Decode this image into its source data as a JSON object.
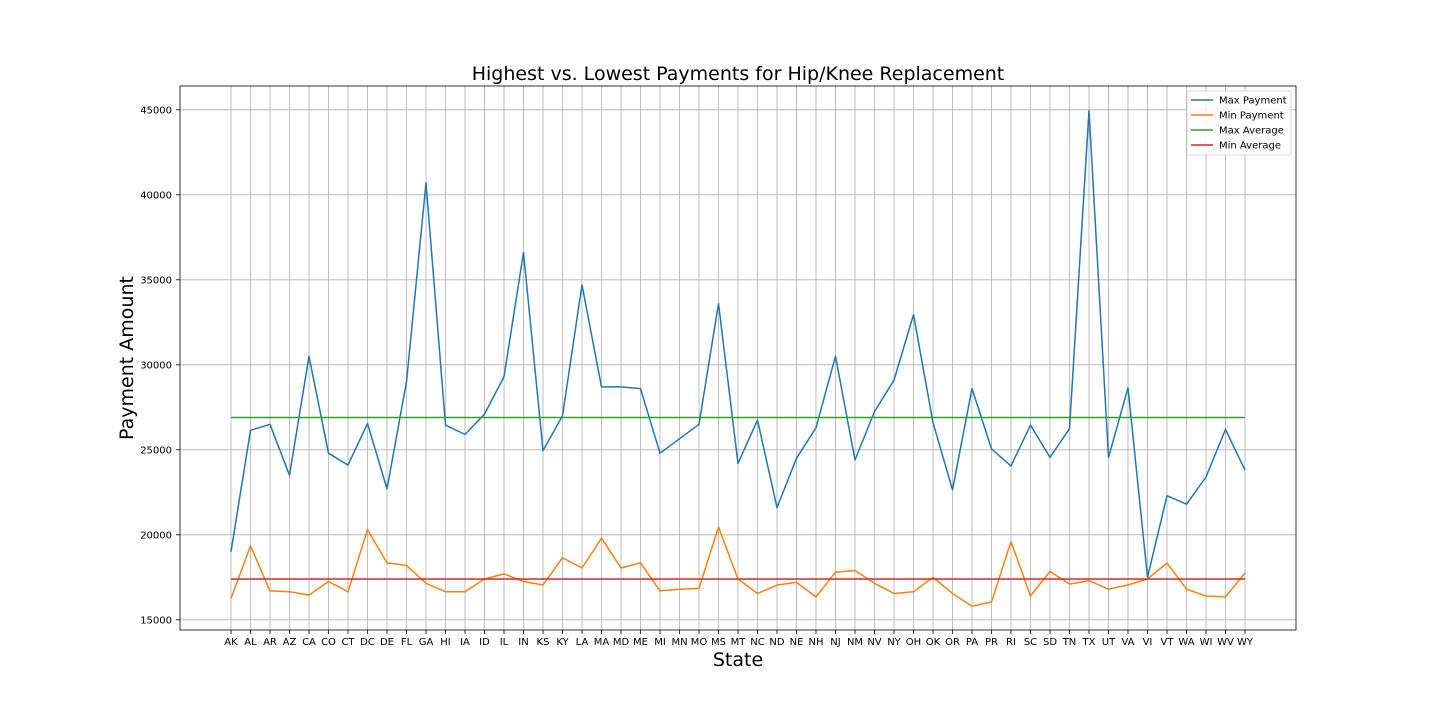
{
  "chart_data": {
    "type": "line",
    "title": "Highest vs. Lowest Payments for Hip/Knee Replacement",
    "xlabel": "State",
    "ylabel": "Payment Amount",
    "ylim": [
      14400,
      46400
    ],
    "yticks": [
      15000,
      20000,
      25000,
      30000,
      35000,
      40000,
      45000
    ],
    "grid": true,
    "legend_position": "top-right",
    "categories": [
      "AK",
      "AL",
      "AR",
      "AZ",
      "CA",
      "CO",
      "CT",
      "DC",
      "DE",
      "FL",
      "GA",
      "HI",
      "IA",
      "ID",
      "IL",
      "IN",
      "KS",
      "KY",
      "LA",
      "MA",
      "MD",
      "ME",
      "MI",
      "MN",
      "MO",
      "MS",
      "MT",
      "NC",
      "ND",
      "NE",
      "NH",
      "NJ",
      "NM",
      "NV",
      "NY",
      "OH",
      "OK",
      "OR",
      "PA",
      "PR",
      "RI",
      "SC",
      "SD",
      "TN",
      "TX",
      "UT",
      "VA",
      "VI",
      "VT",
      "WA",
      "WI",
      "WV",
      "WY"
    ],
    "series": [
      {
        "name": "Max Payment",
        "color": "#1f77b4",
        "values": [
          19000,
          26150,
          26500,
          23500,
          30500,
          24800,
          24100,
          26550,
          22700,
          29000,
          40700,
          26450,
          25900,
          27100,
          29300,
          36600,
          24950,
          27000,
          34700,
          28700,
          28700,
          28600,
          24800,
          25650,
          26500,
          33600,
          24200,
          26750,
          21600,
          24500,
          26300,
          30500,
          24400,
          27250,
          29100,
          32950,
          26600,
          22650,
          28600,
          25050,
          24050,
          26450,
          24550,
          26250,
          44950,
          24550,
          28650,
          17500,
          22300,
          21800,
          23400,
          26200,
          23800
        ]
      },
      {
        "name": "Min Payment",
        "color": "#ff7f0e",
        "values": [
          16250,
          19350,
          16700,
          16650,
          16450,
          17250,
          16650,
          20300,
          18350,
          18200,
          17150,
          16650,
          16650,
          17400,
          17700,
          17250,
          17050,
          18650,
          18050,
          19800,
          18050,
          18350,
          16700,
          16800,
          16850,
          20450,
          17400,
          16550,
          17050,
          17200,
          16350,
          17800,
          17900,
          17150,
          16550,
          16650,
          17500,
          16550,
          15800,
          16050,
          19600,
          16400,
          17850,
          17100,
          17300,
          16800,
          17050,
          17400,
          18350,
          16800,
          16400,
          16350,
          17750
        ]
      },
      {
        "name": "Max Average",
        "color": "#2ca02c",
        "values": [
          26900,
          26900,
          26900,
          26900,
          26900,
          26900,
          26900,
          26900,
          26900,
          26900,
          26900,
          26900,
          26900,
          26900,
          26900,
          26900,
          26900,
          26900,
          26900,
          26900,
          26900,
          26900,
          26900,
          26900,
          26900,
          26900,
          26900,
          26900,
          26900,
          26900,
          26900,
          26900,
          26900,
          26900,
          26900,
          26900,
          26900,
          26900,
          26900,
          26900,
          26900,
          26900,
          26900,
          26900,
          26900,
          26900,
          26900,
          26900,
          26900,
          26900,
          26900,
          26900,
          26900
        ]
      },
      {
        "name": "Min Average",
        "color": "#d62728",
        "values": [
          17400,
          17400,
          17400,
          17400,
          17400,
          17400,
          17400,
          17400,
          17400,
          17400,
          17400,
          17400,
          17400,
          17400,
          17400,
          17400,
          17400,
          17400,
          17400,
          17400,
          17400,
          17400,
          17400,
          17400,
          17400,
          17400,
          17400,
          17400,
          17400,
          17400,
          17400,
          17400,
          17400,
          17400,
          17400,
          17400,
          17400,
          17400,
          17400,
          17400,
          17400,
          17400,
          17400,
          17400,
          17400,
          17400,
          17400,
          17400,
          17400,
          17400,
          17400,
          17400,
          17400
        ]
      }
    ]
  }
}
